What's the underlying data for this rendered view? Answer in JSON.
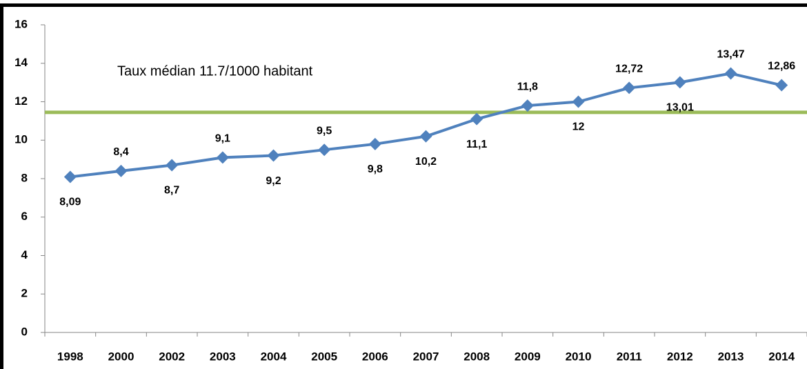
{
  "chart_data": {
    "type": "line",
    "categories": [
      "1998",
      "2000",
      "2002",
      "2003",
      "2004",
      "2005",
      "2006",
      "2007",
      "2008",
      "2009",
      "2010",
      "2011",
      "2012",
      "2013",
      "2014"
    ],
    "series": [
      {
        "color": "#4f81bd",
        "values": [
          8.09,
          8.4,
          8.7,
          9.1,
          9.2,
          9.5,
          9.8,
          10.2,
          11.1,
          11.8,
          12,
          12.72,
          13.01,
          13.47,
          12.86
        ],
        "value_labels": [
          "8,09",
          "8,4",
          "8,7",
          "9,1",
          "9,2",
          "9,5",
          "9,8",
          "10,2",
          "11,1",
          "11,8",
          "12",
          "12,72",
          "13,01",
          "13,47",
          "12,86"
        ]
      }
    ],
    "ylim": [
      0,
      16
    ],
    "yticks": [
      0,
      2,
      4,
      6,
      8,
      10,
      12,
      14,
      16
    ],
    "reference_line": {
      "value": 11.45,
      "color": "#9bbb59"
    },
    "annotation": "Taux médian 11.7/1000 habitant"
  }
}
